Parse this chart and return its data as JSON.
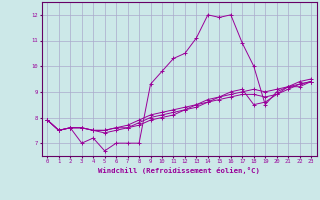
{
  "background_color": "#cce8e8",
  "grid_color": "#aaaacc",
  "line_color": "#990099",
  "spine_color": "#660066",
  "xlim": [
    -0.5,
    23.5
  ],
  "ylim": [
    6.5,
    12.5
  ],
  "xticks": [
    0,
    1,
    2,
    3,
    4,
    5,
    6,
    7,
    8,
    9,
    10,
    11,
    12,
    13,
    14,
    15,
    16,
    17,
    18,
    19,
    20,
    21,
    22,
    23
  ],
  "yticks": [
    7,
    8,
    9,
    10,
    11,
    12
  ],
  "xlabel": "Windchill (Refroidissement éolien,°C)",
  "series": [
    [
      7.9,
      7.5,
      7.6,
      7.0,
      7.2,
      6.7,
      7.0,
      7.0,
      7.0,
      9.3,
      9.8,
      10.3,
      10.5,
      11.1,
      12.0,
      11.9,
      12.0,
      10.9,
      10.0,
      8.5,
      9.0,
      9.2,
      9.4,
      9.5
    ],
    [
      7.9,
      7.5,
      7.6,
      7.6,
      7.5,
      7.5,
      7.6,
      7.6,
      7.8,
      8.0,
      8.1,
      8.2,
      8.3,
      8.5,
      8.6,
      8.7,
      8.8,
      8.9,
      8.9,
      8.8,
      8.9,
      9.1,
      9.3,
      9.4
    ],
    [
      7.9,
      7.5,
      7.6,
      7.6,
      7.5,
      7.5,
      7.6,
      7.7,
      7.9,
      8.1,
      8.2,
      8.3,
      8.4,
      8.5,
      8.7,
      8.8,
      8.9,
      9.0,
      9.1,
      9.0,
      9.1,
      9.2,
      9.3,
      9.4
    ],
    [
      7.9,
      7.5,
      7.6,
      7.6,
      7.5,
      7.4,
      7.5,
      7.6,
      7.7,
      7.9,
      8.0,
      8.1,
      8.3,
      8.4,
      8.6,
      8.8,
      9.0,
      9.1,
      8.5,
      8.6,
      8.9,
      9.2,
      9.2,
      9.4
    ]
  ]
}
